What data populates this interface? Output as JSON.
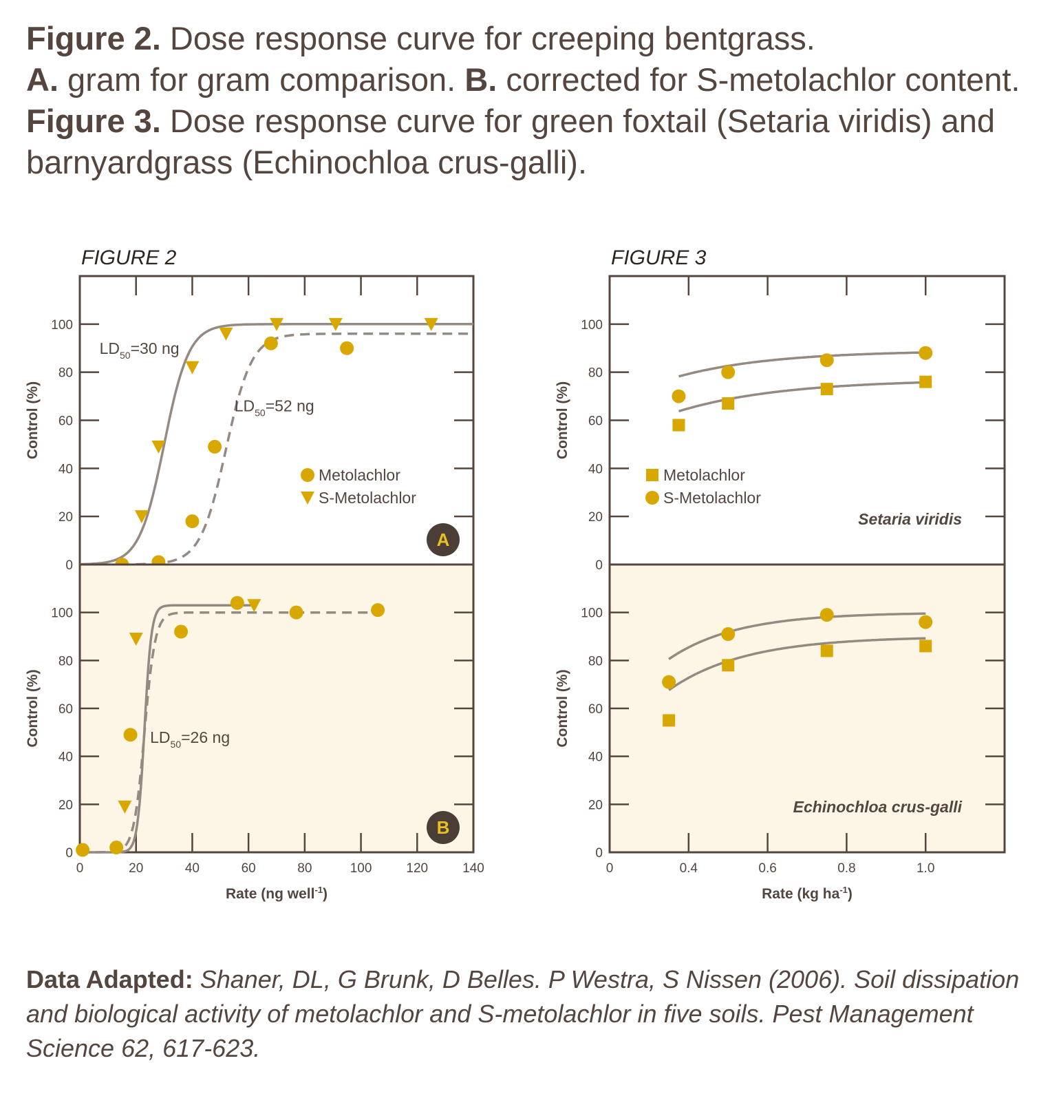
{
  "caption": {
    "fig2_bold": "Figure 2.",
    "fig2_text": " Dose response curve for creeping bentgrass.",
    "a_bold": "A.",
    "a_text": " gram for gram comparison. ",
    "b_bold": "B.",
    "b_text": " corrected for S-metolachlor content. ",
    "fig3_bold": "Figure 3.",
    "fig3_text": " Dose response curve for green foxtail (Setaria viridis) and barnyardgrass (Echinochloa crus-galli)."
  },
  "credit": {
    "label": "Data Adapted:",
    "text": " Shaner, DL, G Brunk, D Belles. P Westra, S Nissen (2006). Soil dissipation and biological activity of metolachlor and S-metolachlor in five soils. Pest Management Science 62, 617-623."
  },
  "colors": {
    "marker": "#d9a800",
    "curve": "#958a82",
    "axis": "#54463e",
    "panel_b_fill": "#fdf6e6",
    "badge": "#4a3e37"
  },
  "chart_data": [
    {
      "id": "fig2",
      "type": "scatter",
      "title": "FIGURE 2",
      "xlabel": "Rate (ng well",
      "xlabel_sup": "-1",
      "xlabel_end": ")",
      "xlim": [
        0,
        140
      ],
      "xticks": [
        "0",
        "20",
        "40",
        "60",
        "80",
        "100",
        "120",
        "140"
      ],
      "xtick_values": [
        0,
        20,
        40,
        60,
        80,
        100,
        120,
        140
      ],
      "panels": [
        {
          "badge": "A",
          "ylabel": "Control (%)",
          "ylim": [
            0,
            100
          ],
          "yticks": [
            "0",
            "20",
            "40",
            "60",
            "80",
            "100"
          ],
          "background": "white",
          "series": [
            {
              "name": "Metolachlor",
              "marker": "circle",
              "curve": "dashed",
              "x": [
                15,
                28,
                40,
                48,
                68,
                95
              ],
              "y": [
                0,
                1,
                18,
                49,
                92,
                90
              ]
            },
            {
              "name": "S-Metolachlor",
              "marker": "triangle-down",
              "curve": "solid",
              "x": [
                22,
                28,
                40,
                52,
                70,
                91,
                125
              ],
              "y": [
                20,
                49,
                82,
                96,
                100,
                100,
                100
              ]
            }
          ],
          "annotations": [
            {
              "label": "LD",
              "sub": "50",
              "text": "=30 ng",
              "anchor_x": 7,
              "anchor_y": 90
            },
            {
              "label": "LD",
              "sub": "50",
              "text": "=52 ng",
              "anchor_x": 55,
              "anchor_y": 66
            }
          ]
        },
        {
          "badge": "B",
          "ylabel": "Control (%)",
          "ylim": [
            0,
            100
          ],
          "yticks": [
            "0",
            "20",
            "40",
            "60",
            "80",
            "100"
          ],
          "background": "cream",
          "series": [
            {
              "name": "Metolachlor",
              "marker": "circle",
              "curve": "dashed",
              "x": [
                1,
                13,
                18,
                36,
                56,
                77,
                106
              ],
              "y": [
                1,
                2,
                49,
                92,
                104,
                100,
                101
              ]
            },
            {
              "name": "S-Metolachlor",
              "marker": "triangle-down",
              "curve": "solid",
              "x": [
                16,
                20,
                62
              ],
              "y": [
                19,
                89,
                103
              ]
            }
          ],
          "annotations": [
            {
              "label": "LD",
              "sub": "50",
              "text": "=26 ng",
              "anchor_x": 25,
              "anchor_y": 48
            }
          ]
        }
      ]
    },
    {
      "id": "fig3",
      "type": "scatter",
      "title": "FIGURE 3",
      "xlabel": "Rate (kg ha",
      "xlabel_sup": "-1",
      "xlabel_end": ")",
      "xlim": [
        0.2,
        1.2
      ],
      "xticks": [
        "0",
        "0.4",
        "0.6",
        "0.8",
        "1.0"
      ],
      "xtick_values": [
        0.2,
        0.4,
        0.6,
        0.8,
        1.0
      ],
      "panels": [
        {
          "species": "Setaria viridis",
          "ylabel": "Control (%)",
          "ylim": [
            0,
            100
          ],
          "yticks": [
            "0",
            "20",
            "40",
            "60",
            "80",
            "100"
          ],
          "background": "white",
          "series": [
            {
              "name": "Metolachlor",
              "marker": "square",
              "x": [
                0.375,
                0.5,
                0.75,
                1.0
              ],
              "y": [
                58,
                67,
                73,
                76
              ]
            },
            {
              "name": "S-Metolachlor",
              "marker": "circle",
              "x": [
                0.375,
                0.5,
                0.75,
                1.0
              ],
              "y": [
                70,
                80,
                85,
                88
              ]
            }
          ]
        },
        {
          "species": "Echinochloa crus-galli",
          "ylabel": "Control (%)",
          "ylim": [
            0,
            100
          ],
          "yticks": [
            "0",
            "20",
            "40",
            "60",
            "80",
            "100"
          ],
          "background": "cream",
          "series": [
            {
              "name": "Metolachlor",
              "marker": "square",
              "x": [
                0.35,
                0.5,
                0.75,
                1.0
              ],
              "y": [
                55,
                78,
                84,
                86
              ]
            },
            {
              "name": "S-Metolachlor",
              "marker": "circle",
              "x": [
                0.35,
                0.5,
                0.75,
                1.0
              ],
              "y": [
                71,
                91,
                99,
                96
              ]
            }
          ]
        }
      ]
    }
  ]
}
